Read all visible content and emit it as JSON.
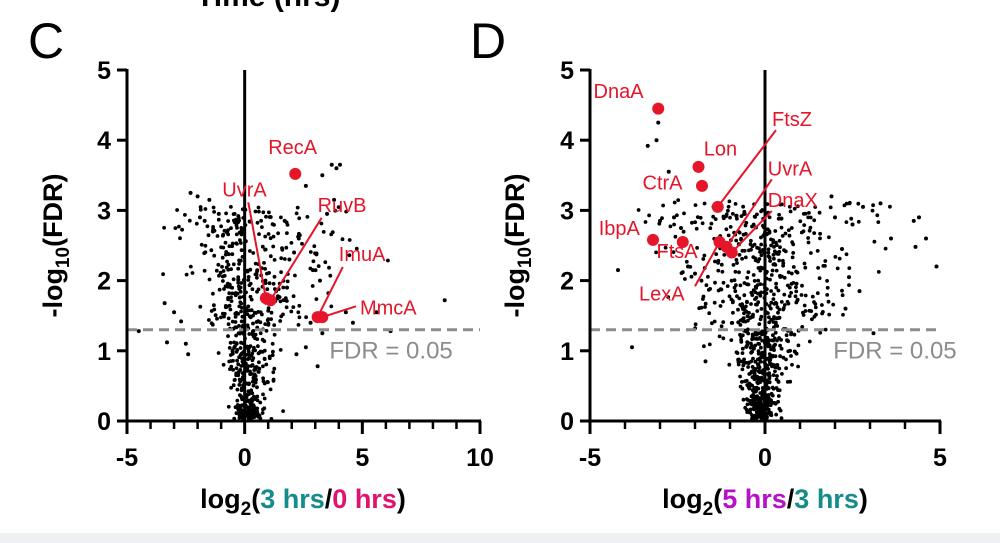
{
  "cropped_top_text": "Time (hrs)",
  "chart_data": [
    {
      "type": "scatter",
      "panel_letter": "C",
      "ylabel": "-log10(FDR)",
      "xlabel_parts": [
        {
          "text": "log",
          "color": "#000000"
        },
        {
          "text": "2",
          "color": "#000000",
          "sub": true
        },
        {
          "text": "(",
          "color": "#000000"
        },
        {
          "text": "3 hrs",
          "color": "#148C8C"
        },
        {
          "text": "/",
          "color": "#000000"
        },
        {
          "text": "0 hrs",
          "color": "#E0126E"
        },
        {
          "text": ")",
          "color": "#000000"
        }
      ],
      "xlim": [
        -5,
        10
      ],
      "ylim": [
        0,
        5
      ],
      "xticks": [
        -5,
        0,
        5,
        10
      ],
      "xticks_minor": [
        -5,
        -4,
        -3,
        -2,
        -1,
        0,
        1,
        2,
        3,
        4,
        5,
        6,
        7,
        8,
        9,
        10
      ],
      "yticks": [
        0,
        1,
        2,
        3,
        4,
        5
      ],
      "threshold": {
        "y": 1.3,
        "label": "FDR = 0.05",
        "x_label": 3.6
      },
      "highlighted": [
        {
          "name": "RecA",
          "x": 2.15,
          "y": 3.52,
          "label_x": 1.0,
          "label_y": 3.8,
          "line": false
        },
        {
          "name": "UvrA",
          "x": 0.9,
          "y": 1.75,
          "label_x": -0.95,
          "label_y": 3.2,
          "line": true
        },
        {
          "name": "RuvB",
          "x": 1.1,
          "y": 1.72,
          "label_x": 3.1,
          "label_y": 2.98,
          "line": true
        },
        {
          "name": "ImuA",
          "x": 3.1,
          "y": 1.48,
          "label_x": 4.0,
          "label_y": 2.28,
          "line": true
        },
        {
          "name": "MmcA",
          "x": 3.3,
          "y": 1.48,
          "label_x": 4.9,
          "label_y": 1.52,
          "line": true
        }
      ],
      "sparse_points": [
        {
          "x": -2.3,
          "y": 3.25
        },
        {
          "x": -2.0,
          "y": 3.2
        },
        {
          "x": -1.9,
          "y": 2.9
        },
        {
          "x": -1.7,
          "y": 2.85
        },
        {
          "x": -1.5,
          "y": 3.15
        },
        {
          "x": -1.35,
          "y": 2.7
        },
        {
          "x": -1.1,
          "y": 2.95
        },
        {
          "x": -3.4,
          "y": 1.68
        },
        {
          "x": -3.0,
          "y": 1.55
        },
        {
          "x": -2.7,
          "y": 1.42
        },
        {
          "x": -4.5,
          "y": 1.28
        },
        {
          "x": -3.3,
          "y": 1.12
        },
        {
          "x": -2.5,
          "y": 1.1
        },
        {
          "x": -2.4,
          "y": 0.95
        },
        {
          "x": 3.7,
          "y": 3.65
        },
        {
          "x": 3.9,
          "y": 3.6
        },
        {
          "x": 4.05,
          "y": 3.65
        },
        {
          "x": 2.6,
          "y": 3.35
        },
        {
          "x": 3.3,
          "y": 3.5
        },
        {
          "x": 3.8,
          "y": 3.15
        },
        {
          "x": 3.5,
          "y": 2.95
        },
        {
          "x": 2.3,
          "y": 2.6
        },
        {
          "x": 2.1,
          "y": 2.4
        },
        {
          "x": 1.7,
          "y": 2.85
        },
        {
          "x": 1.9,
          "y": 2.3
        },
        {
          "x": 2.9,
          "y": 2.15
        },
        {
          "x": 3.2,
          "y": 2.0
        },
        {
          "x": 4.3,
          "y": 1.55
        },
        {
          "x": 4.6,
          "y": 1.4
        },
        {
          "x": 5.6,
          "y": 1.55
        },
        {
          "x": 8.5,
          "y": 1.72
        },
        {
          "x": 6.2,
          "y": 1.28
        },
        {
          "x": 3.3,
          "y": 1.25
        },
        {
          "x": 3.1,
          "y": 0.78
        },
        {
          "x": 2.2,
          "y": 0.95
        },
        {
          "x": 2.6,
          "y": 1.05
        },
        {
          "x": 2.8,
          "y": 1.4
        },
        {
          "x": 1.8,
          "y": 1.9
        }
      ],
      "cloud": {
        "count": 640,
        "spread": [
          1.35,
          2.9
        ],
        "ymax": 3.05,
        "seed": 11,
        "xshift": 0.1
      }
    },
    {
      "type": "scatter",
      "panel_letter": "D",
      "ylabel": "-log10(FDR)",
      "xlabel_parts": [
        {
          "text": "log",
          "color": "#000000"
        },
        {
          "text": "2",
          "color": "#000000",
          "sub": true
        },
        {
          "text": "(",
          "color": "#000000"
        },
        {
          "text": "5 hrs",
          "color": "#B412C8"
        },
        {
          "text": "/",
          "color": "#000000"
        },
        {
          "text": "3 hrs",
          "color": "#148C8C"
        },
        {
          "text": ")",
          "color": "#000000"
        }
      ],
      "xlim": [
        -5,
        5
      ],
      "ylim": [
        0,
        5
      ],
      "xticks": [
        -5,
        0,
        5
      ],
      "xticks_minor": [
        -5,
        -4,
        -3,
        -2,
        -1,
        0,
        1,
        2,
        3,
        4,
        5
      ],
      "yticks": [
        0,
        1,
        2,
        3,
        4,
        5
      ],
      "threshold": {
        "y": 1.3,
        "label": "FDR = 0.05",
        "x_label": 1.95
      },
      "highlighted": [
        {
          "name": "DnaA",
          "x": -3.05,
          "y": 4.45,
          "label_x": -4.9,
          "label_y": 4.6,
          "line": false
        },
        {
          "name": "Lon",
          "x": -1.9,
          "y": 3.62,
          "label_x": -1.75,
          "label_y": 3.78,
          "line": false
        },
        {
          "name": "CtrA",
          "x": -1.8,
          "y": 3.35,
          "label_x": -3.5,
          "label_y": 3.3,
          "line": false
        },
        {
          "name": "FtsZ",
          "x": -1.35,
          "y": 3.05,
          "label_x": 0.2,
          "label_y": 4.2,
          "line": true
        },
        {
          "name": "UvrA",
          "x": -1.1,
          "y": 2.48,
          "label_x": 0.08,
          "label_y": 3.5,
          "line": true
        },
        {
          "name": "DnaX",
          "x": -0.95,
          "y": 2.4,
          "label_x": 0.08,
          "label_y": 3.05,
          "line": true
        },
        {
          "name": "IbpA",
          "x": -3.2,
          "y": 2.58,
          "label_x": -4.75,
          "label_y": 2.65,
          "line": false
        },
        {
          "name": "FtsA",
          "x": -2.35,
          "y": 2.55,
          "label_x": -3.1,
          "label_y": 2.32,
          "line": false
        },
        {
          "name": "LexA",
          "x": -1.3,
          "y": 2.55,
          "label_x": -3.6,
          "label_y": 1.72,
          "line": true
        }
      ],
      "sparse_points": [
        {
          "x": -3.1,
          "y": 4.0
        },
        {
          "x": -3.05,
          "y": 4.25
        },
        {
          "x": -3.35,
          "y": 3.92
        },
        {
          "x": -2.75,
          "y": 3.55
        },
        {
          "x": -3.0,
          "y": 2.85
        },
        {
          "x": -2.6,
          "y": 2.9
        },
        {
          "x": -2.4,
          "y": 2.75
        },
        {
          "x": -2.2,
          "y": 2.2
        },
        {
          "x": -2.0,
          "y": 2.1
        },
        {
          "x": -4.2,
          "y": 2.15
        },
        {
          "x": -3.8,
          "y": 1.05
        },
        {
          "x": -1.7,
          "y": 0.85
        },
        {
          "x": 4.25,
          "y": 2.85
        },
        {
          "x": 4.4,
          "y": 2.9
        },
        {
          "x": 4.6,
          "y": 2.6
        },
        {
          "x": 4.3,
          "y": 2.48
        },
        {
          "x": 4.9,
          "y": 2.2
        },
        {
          "x": 3.6,
          "y": 2.6
        },
        {
          "x": 3.3,
          "y": 3.1
        },
        {
          "x": 2.8,
          "y": 3.05
        },
        {
          "x": 2.5,
          "y": 2.8
        },
        {
          "x": 2.2,
          "y": 2.45
        },
        {
          "x": 2.4,
          "y": 2.05
        },
        {
          "x": 2.7,
          "y": 1.85
        },
        {
          "x": 3.1,
          "y": 1.25
        },
        {
          "x": 2.3,
          "y": 1.6
        },
        {
          "x": 1.9,
          "y": 3.2
        },
        {
          "x": 2.0,
          "y": 2.9
        }
      ],
      "cloud": {
        "count": 900,
        "spread": [
          1.15,
          1.55
        ],
        "ymax": 3.15,
        "seed": 29,
        "xshift": -0.15
      }
    }
  ]
}
